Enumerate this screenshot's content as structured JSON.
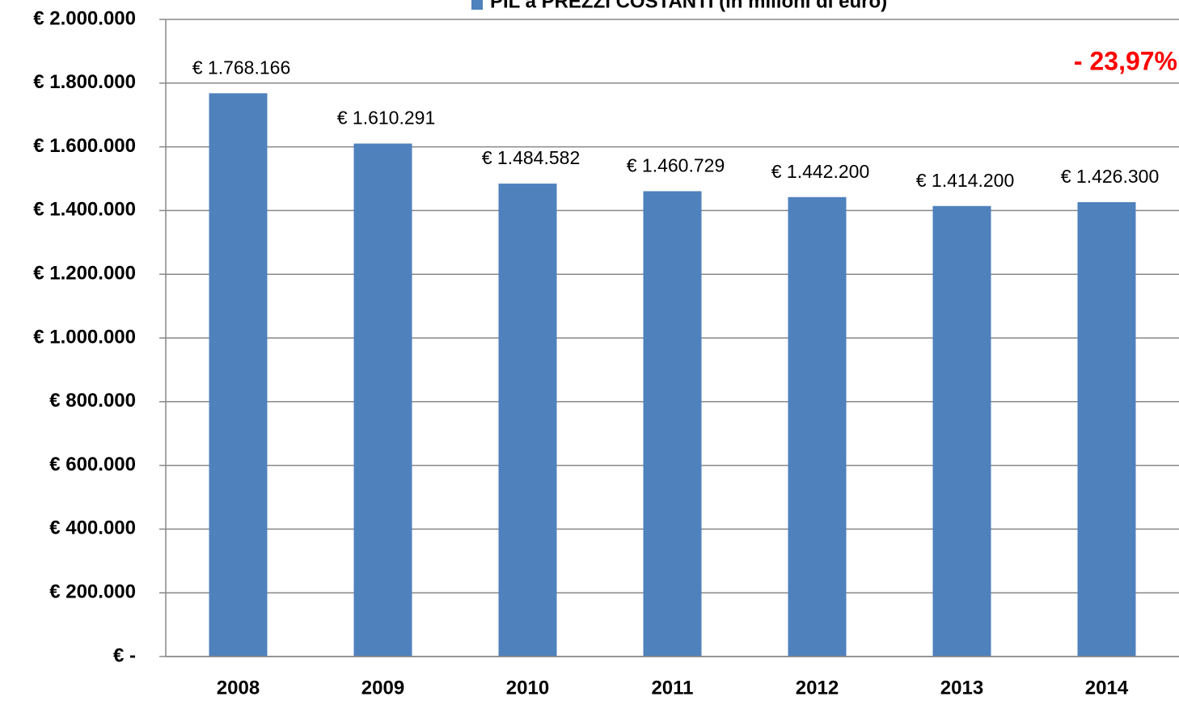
{
  "chart_data": {
    "type": "bar",
    "categories": [
      "2008",
      "2009",
      "2010",
      "2011",
      "2012",
      "2013",
      "2014"
    ],
    "series": [
      {
        "name": "PIL a PREZZI COSTANTI (in milioni di euro)",
        "color": "#4f81bd",
        "values": [
          1768166,
          1610291,
          1484582,
          1460729,
          1442200,
          1414200,
          1426300
        ],
        "value_labels": [
          "€ 1.768.166",
          "€ 1.610.291",
          "€ 1.484.582",
          "€ 1.460.729",
          "€ 1.442.200",
          "€ 1.414.200",
          "€ 1.426.300"
        ]
      }
    ],
    "ylim": [
      0,
      2000000
    ],
    "yticks": [
      {
        "value": 0,
        "label": "€ -"
      },
      {
        "value": 200000,
        "label": "€ 200.000"
      },
      {
        "value": 400000,
        "label": "€ 400.000"
      },
      {
        "value": 600000,
        "label": "€ 600.000"
      },
      {
        "value": 800000,
        "label": "€ 800.000"
      },
      {
        "value": 1000000,
        "label": "€ 1.000.000"
      },
      {
        "value": 1200000,
        "label": "€ 1.200.000"
      },
      {
        "value": 1400000,
        "label": "€ 1.400.000"
      },
      {
        "value": 1600000,
        "label": "€ 1.600.000"
      },
      {
        "value": 1800000,
        "label": "€ 1.800.000"
      },
      {
        "value": 2000000,
        "label": "€ 2.000.000"
      }
    ],
    "grid": true,
    "legend": "top",
    "annotation": "- 23,97%",
    "annotation_color": "#ff0000"
  }
}
